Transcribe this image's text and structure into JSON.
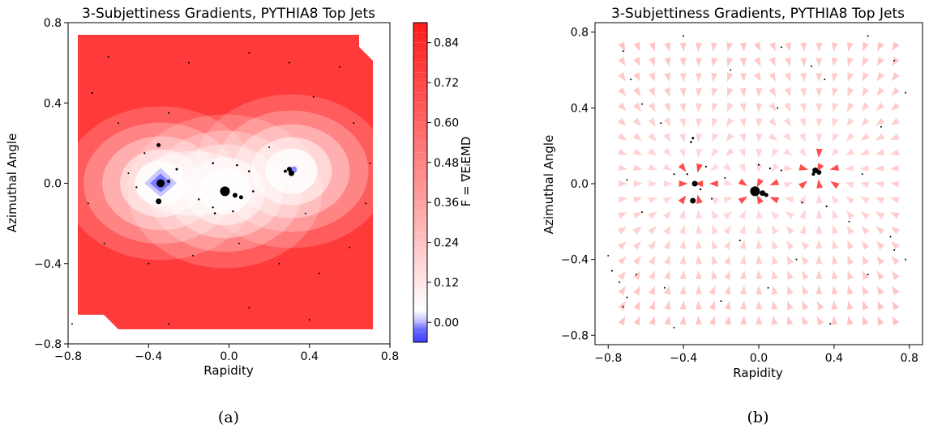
{
  "captions": [
    "(a)",
    "(b)"
  ],
  "chart_data": [
    {
      "type": "heatmap",
      "title": "3-Subjettiness Gradients, PYTHIA8 Top Jets",
      "xlabel": "Rapidity",
      "ylabel": "Azimuthal Angle",
      "xlim": [
        -0.8,
        0.8
      ],
      "ylim": [
        -0.8,
        0.8
      ],
      "xticks": [
        "−0.8",
        "−0.4",
        "0.0",
        "0.4",
        "0.8"
      ],
      "yticks": [
        "−0.8",
        "−0.4",
        "0.0",
        "0.4",
        "0.8"
      ],
      "colorbar": {
        "label": "F = ∇EᵢEMD",
        "range": [
          -0.06,
          0.9
        ],
        "ticks": [
          "0.00",
          "0.12",
          "0.24",
          "0.36",
          "0.48",
          "0.60",
          "0.72",
          "0.84"
        ],
        "negative_color": "#3f3fff",
        "positive_color": "#ff1a1a"
      },
      "hotspots": [
        {
          "x": -0.34,
          "y": 0.0
        },
        {
          "x": -0.02,
          "y": -0.04
        },
        {
          "x": 0.31,
          "y": 0.06
        }
      ],
      "particles": [
        {
          "x": -0.34,
          "y": 0.0,
          "s": 5.0
        },
        {
          "x": -0.02,
          "y": -0.04,
          "s": 6.0
        },
        {
          "x": 0.03,
          "y": -0.06,
          "s": 3.0
        },
        {
          "x": 0.06,
          "y": -0.07,
          "s": 2.5
        },
        {
          "x": -0.35,
          "y": 0.19,
          "s": 2.5
        },
        {
          "x": -0.35,
          "y": -0.09,
          "s": 3.5
        },
        {
          "x": 0.3,
          "y": 0.07,
          "s": 3.0
        },
        {
          "x": 0.31,
          "y": 0.05,
          "s": 3.5
        },
        {
          "x": 0.28,
          "y": 0.06,
          "s": 2.0
        },
        {
          "x": -0.3,
          "y": 0.01,
          "s": 2.0
        },
        {
          "x": -0.26,
          "y": 0.07,
          "s": 1.5
        },
        {
          "x": -0.08,
          "y": 0.1,
          "s": 1.3
        },
        {
          "x": 0.04,
          "y": 0.09,
          "s": 1.3
        },
        {
          "x": 0.1,
          "y": 0.06,
          "s": 1.3
        },
        {
          "x": 0.12,
          "y": -0.04,
          "s": 1.3
        },
        {
          "x": -0.07,
          "y": -0.15,
          "s": 1.3
        },
        {
          "x": -0.08,
          "y": -0.12,
          "s": 1.2
        },
        {
          "x": 0.02,
          "y": -0.14,
          "s": 1.2
        },
        {
          "x": -0.15,
          "y": -0.08,
          "s": 1.2
        },
        {
          "x": -0.46,
          "y": -0.02,
          "s": 1.2
        },
        {
          "x": -0.42,
          "y": 0.15,
          "s": 1.1
        },
        {
          "x": -0.3,
          "y": 0.35,
          "s": 1.1
        },
        {
          "x": -0.68,
          "y": 0.45,
          "s": 1.1
        },
        {
          "x": -0.55,
          "y": 0.3,
          "s": 1.0
        },
        {
          "x": -0.6,
          "y": 0.63,
          "s": 1.0
        },
        {
          "x": -0.2,
          "y": 0.6,
          "s": 1.0
        },
        {
          "x": 0.1,
          "y": 0.65,
          "s": 1.0
        },
        {
          "x": 0.3,
          "y": 0.6,
          "s": 1.0
        },
        {
          "x": 0.55,
          "y": 0.58,
          "s": 1.0
        },
        {
          "x": 0.42,
          "y": 0.43,
          "s": 1.0
        },
        {
          "x": 0.62,
          "y": 0.3,
          "s": 1.0
        },
        {
          "x": 0.7,
          "y": 0.1,
          "s": 1.0
        },
        {
          "x": 0.68,
          "y": -0.1,
          "s": 1.0
        },
        {
          "x": 0.6,
          "y": -0.32,
          "s": 1.0
        },
        {
          "x": 0.45,
          "y": -0.45,
          "s": 1.0
        },
        {
          "x": 0.25,
          "y": -0.4,
          "s": 1.0
        },
        {
          "x": 0.05,
          "y": -0.3,
          "s": 1.0
        },
        {
          "x": -0.18,
          "y": -0.36,
          "s": 1.0
        },
        {
          "x": -0.4,
          "y": -0.4,
          "s": 1.0
        },
        {
          "x": -0.62,
          "y": -0.3,
          "s": 1.0
        },
        {
          "x": -0.7,
          "y": -0.1,
          "s": 1.0
        },
        {
          "x": -0.78,
          "y": -0.7,
          "s": 1.0
        },
        {
          "x": -0.3,
          "y": -0.7,
          "s": 1.0
        },
        {
          "x": 0.1,
          "y": -0.62,
          "s": 1.0
        },
        {
          "x": 0.4,
          "y": -0.68,
          "s": 1.0
        },
        {
          "x": -0.5,
          "y": 0.05,
          "s": 1.0
        },
        {
          "x": 0.2,
          "y": 0.18,
          "s": 1.0
        },
        {
          "x": 0.38,
          "y": -0.15,
          "s": 1.0
        }
      ]
    },
    {
      "type": "scatter",
      "title": "3-Subjettiness Gradients, PYTHIA8 Top Jets",
      "xlabel": "Rapidity",
      "ylabel": "Azimuthal Angle",
      "xlim": [
        -0.87,
        0.87
      ],
      "ylim": [
        -0.85,
        0.85
      ],
      "xticks": [
        "−0.8",
        "−0.4",
        "0.0",
        "0.4",
        "0.8"
      ],
      "yticks": [
        "−0.8",
        "−0.4",
        "0.0",
        "0.4",
        "0.8"
      ],
      "arrow_grid": {
        "xmin": -0.72,
        "xmax": 0.72,
        "ymin": -0.72,
        "ymax": 0.72,
        "step": 0.08
      },
      "arrow_color": "#ff8080",
      "attractors": [
        {
          "x": -0.34,
          "y": 0.0
        },
        {
          "x": -0.02,
          "y": -0.04
        },
        {
          "x": 0.31,
          "y": 0.06
        }
      ],
      "particles": [
        {
          "x": -0.02,
          "y": -0.04,
          "s": 6.0
        },
        {
          "x": 0.02,
          "y": -0.05,
          "s": 3.5
        },
        {
          "x": 0.04,
          "y": -0.06,
          "s": 2.5
        },
        {
          "x": -0.34,
          "y": 0.0,
          "s": 3.5
        },
        {
          "x": -0.35,
          "y": -0.09,
          "s": 3.5
        },
        {
          "x": 0.3,
          "y": 0.07,
          "s": 3.5
        },
        {
          "x": 0.32,
          "y": 0.06,
          "s": 3.0
        },
        {
          "x": 0.29,
          "y": 0.05,
          "s": 2.0
        },
        {
          "x": -0.35,
          "y": 0.24,
          "s": 1.5
        },
        {
          "x": -0.36,
          "y": 0.22,
          "s": 1.3
        },
        {
          "x": -0.38,
          "y": 0.05,
          "s": 1.2
        },
        {
          "x": -0.31,
          "y": -0.03,
          "s": 1.2
        },
        {
          "x": -0.45,
          "y": 0.05,
          "s": 1.1
        },
        {
          "x": -0.28,
          "y": 0.09,
          "s": 1.1
        },
        {
          "x": 0.0,
          "y": 0.1,
          "s": 1.1
        },
        {
          "x": 0.06,
          "y": 0.08,
          "s": 1.1
        },
        {
          "x": 0.12,
          "y": 0.07,
          "s": 1.1
        },
        {
          "x": 0.23,
          "y": -0.1,
          "s": 1.1
        },
        {
          "x": 0.36,
          "y": -0.12,
          "s": 1.1
        },
        {
          "x": -0.25,
          "y": -0.08,
          "s": 1.0
        },
        {
          "x": -0.18,
          "y": 0.03,
          "s": 1.0
        },
        {
          "x": -0.8,
          "y": -0.38,
          "s": 1.0
        },
        {
          "x": -0.78,
          "y": -0.46,
          "s": 1.0
        },
        {
          "x": -0.74,
          "y": -0.52,
          "s": 1.0
        },
        {
          "x": -0.7,
          "y": -0.6,
          "s": 1.0
        },
        {
          "x": -0.72,
          "y": -0.65,
          "s": 1.0
        },
        {
          "x": -0.65,
          "y": -0.48,
          "s": 1.0
        },
        {
          "x": -0.5,
          "y": -0.55,
          "s": 1.0
        },
        {
          "x": -0.45,
          "y": -0.76,
          "s": 1.0
        },
        {
          "x": -0.2,
          "y": -0.62,
          "s": 1.0
        },
        {
          "x": 0.05,
          "y": -0.55,
          "s": 1.0
        },
        {
          "x": 0.38,
          "y": -0.74,
          "s": 1.0
        },
        {
          "x": 0.58,
          "y": -0.48,
          "s": 1.0
        },
        {
          "x": 0.72,
          "y": -0.35,
          "s": 1.0
        },
        {
          "x": 0.78,
          "y": -0.4,
          "s": 1.0
        },
        {
          "x": 0.7,
          "y": -0.28,
          "s": 1.0
        },
        {
          "x": -0.72,
          "y": 0.7,
          "s": 1.0
        },
        {
          "x": -0.68,
          "y": 0.55,
          "s": 1.0
        },
        {
          "x": -0.62,
          "y": 0.42,
          "s": 1.0
        },
        {
          "x": -0.4,
          "y": 0.78,
          "s": 1.0
        },
        {
          "x": -0.15,
          "y": 0.6,
          "s": 1.0
        },
        {
          "x": 0.12,
          "y": 0.72,
          "s": 1.0
        },
        {
          "x": 0.28,
          "y": 0.62,
          "s": 1.0
        },
        {
          "x": 0.35,
          "y": 0.55,
          "s": 1.0
        },
        {
          "x": 0.58,
          "y": 0.78,
          "s": 1.0
        },
        {
          "x": 0.72,
          "y": 0.65,
          "s": 1.0
        },
        {
          "x": 0.78,
          "y": 0.48,
          "s": 1.0
        },
        {
          "x": 0.65,
          "y": 0.3,
          "s": 1.0
        },
        {
          "x": -0.52,
          "y": 0.32,
          "s": 1.0
        },
        {
          "x": -0.7,
          "y": 0.02,
          "s": 1.0
        },
        {
          "x": -0.62,
          "y": -0.15,
          "s": 1.0
        },
        {
          "x": 0.55,
          "y": 0.05,
          "s": 1.0
        },
        {
          "x": 0.48,
          "y": -0.2,
          "s": 1.0
        },
        {
          "x": 0.2,
          "y": -0.4,
          "s": 1.0
        },
        {
          "x": -0.1,
          "y": -0.3,
          "s": 1.0
        },
        {
          "x": 0.1,
          "y": 0.4,
          "s": 1.0
        }
      ]
    }
  ]
}
